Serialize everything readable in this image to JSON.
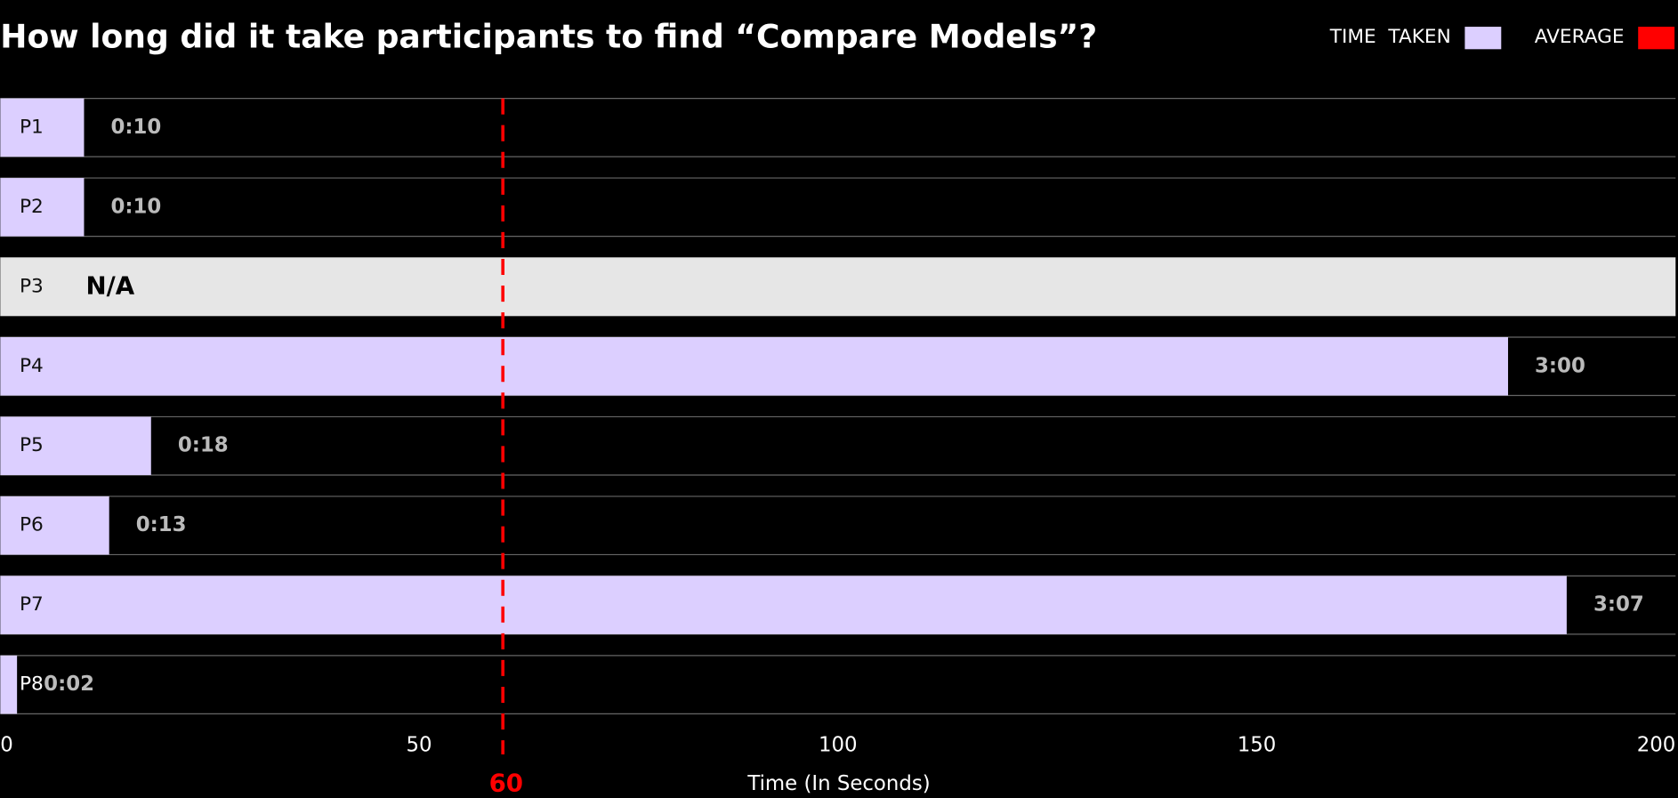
{
  "chart_data": {
    "type": "hbar",
    "title": "How long did it take participants to find “Compare Models”?",
    "x_label": "Time (In Seconds)",
    "categories": [
      "P1",
      "P2",
      "P3",
      "P4",
      "P5",
      "P6",
      "P7",
      "P8"
    ],
    "series": [
      {
        "name": "TIME  TAKEN",
        "color": "#dccfff",
        "values": [
          10,
          10,
          null,
          180,
          18,
          13,
          187,
          2
        ],
        "value_labels": [
          "0:10",
          "0:10",
          "N/A",
          "3:00",
          "0:18",
          "0:13",
          "3:07",
          "0:02"
        ]
      }
    ],
    "average": {
      "name": "AVERAGE",
      "value": 60,
      "color": "#ff0000"
    },
    "xlim": [
      0,
      200
    ],
    "xticks": [
      0,
      50,
      100,
      150,
      200
    ],
    "legend": "top-right"
  }
}
